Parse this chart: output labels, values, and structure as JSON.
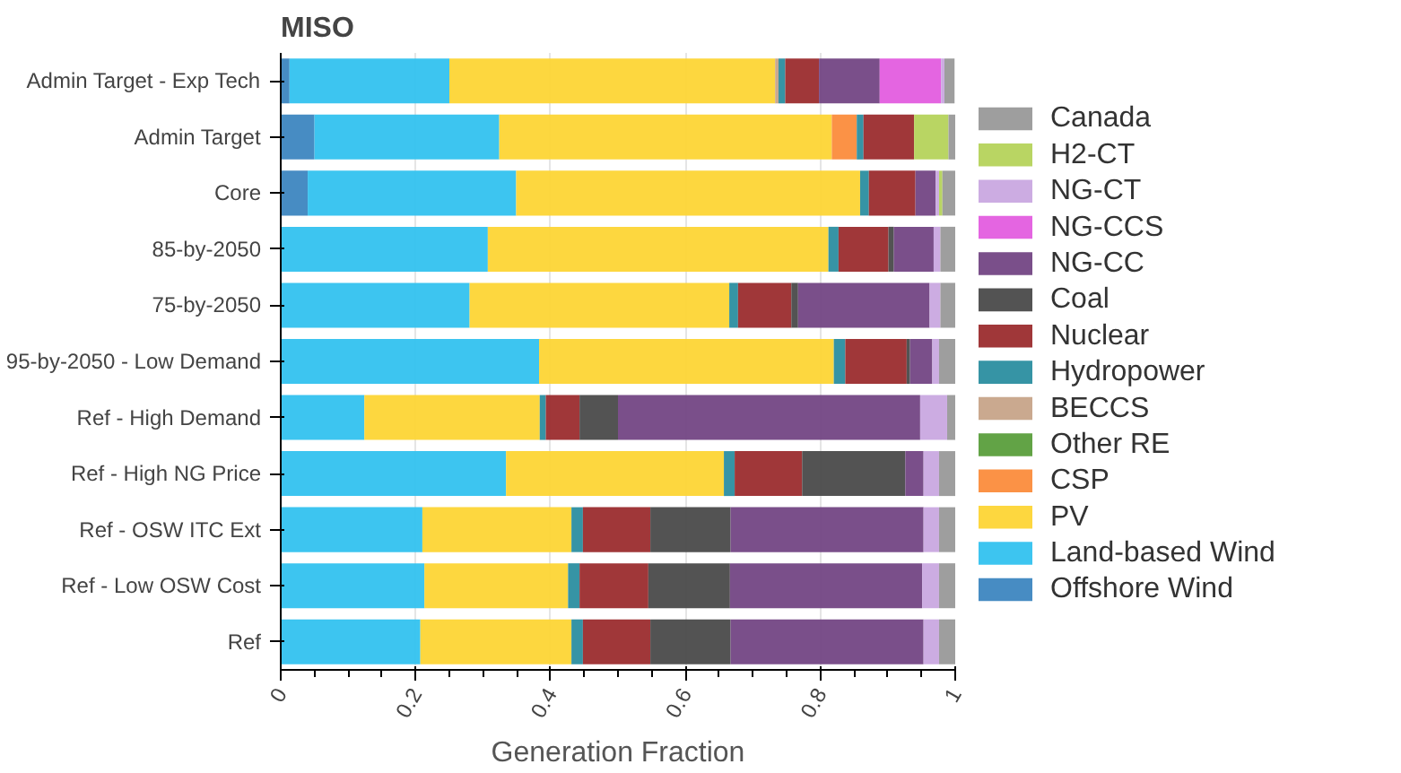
{
  "chart_data": {
    "type": "bar",
    "orientation": "horizontal",
    "stacked": true,
    "title": "MISO",
    "xlabel": "Generation Fraction",
    "categories": [
      "Admin Target - Exp Tech",
      "Admin Target",
      "Core",
      "85-by-2050",
      "75-by-2050",
      "95-by-2050 - Low Demand",
      "Ref - High Demand",
      "Ref - High NG Price",
      "Ref - OSW ITC Ext",
      "Ref - Low OSW Cost",
      "Ref"
    ],
    "xlim": [
      0,
      1
    ],
    "xticks": [
      0,
      0.2,
      0.4,
      0.6,
      0.8,
      1
    ],
    "grid": "x",
    "legend": "right",
    "series": [
      {
        "name": "Offshore Wind",
        "color": "#3d86c0",
        "values": [
          0.013,
          0.05,
          0.04,
          0,
          0,
          0,
          0,
          0,
          0,
          0,
          0
        ]
      },
      {
        "name": "Land-based Wind",
        "color": "#33c2ef",
        "values": [
          0.237,
          0.274,
          0.309,
          0.307,
          0.28,
          0.383,
          0.124,
          0.334,
          0.21,
          0.213,
          0.207
        ]
      },
      {
        "name": "PV",
        "color": "#fdd535",
        "values": [
          0.483,
          0.493,
          0.51,
          0.505,
          0.385,
          0.437,
          0.26,
          0.323,
          0.221,
          0.213,
          0.224
        ]
      },
      {
        "name": "CSP",
        "color": "#fb8c3c",
        "values": [
          0,
          0.037,
          0,
          0,
          0,
          0,
          0,
          0,
          0,
          0,
          0
        ]
      },
      {
        "name": "Other RE",
        "color": "#5a9e3c",
        "values": [
          0,
          0,
          0,
          0,
          0,
          0,
          0,
          0,
          0,
          0,
          0
        ]
      },
      {
        "name": "BECCS",
        "color": "#c7a489",
        "values": [
          0.005,
          0,
          0,
          0,
          0,
          0,
          0,
          0,
          0,
          0,
          0
        ]
      },
      {
        "name": "Hydropower",
        "color": "#2b8ea0",
        "values": [
          0.01,
          0.01,
          0.013,
          0.015,
          0.013,
          0.017,
          0.009,
          0.016,
          0.017,
          0.017,
          0.017
        ]
      },
      {
        "name": "Nuclear",
        "color": "#9b2c2e",
        "values": [
          0.05,
          0.075,
          0.069,
          0.074,
          0.079,
          0.091,
          0.05,
          0.1,
          0.1,
          0.102,
          0.1
        ]
      },
      {
        "name": "Coal",
        "color": "#4a4a4a",
        "values": [
          0,
          0,
          0,
          0.008,
          0.01,
          0.005,
          0.057,
          0.153,
          0.119,
          0.121,
          0.119
        ]
      },
      {
        "name": "NG-CC",
        "color": "#734684",
        "values": [
          0.09,
          0,
          0.03,
          0.059,
          0.195,
          0.033,
          0.448,
          0.027,
          0.286,
          0.285,
          0.286
        ]
      },
      {
        "name": "NG-CCS",
        "color": "#e35ddf",
        "values": [
          0.091,
          0,
          0,
          0,
          0,
          0,
          0,
          0,
          0,
          0,
          0
        ]
      },
      {
        "name": "NG-CT",
        "color": "#c9a8e0",
        "values": [
          0.005,
          0,
          0.005,
          0.01,
          0.016,
          0.01,
          0.04,
          0.023,
          0.023,
          0.025,
          0.023
        ]
      },
      {
        "name": "H2-CT",
        "color": "#b5d35b",
        "values": [
          0,
          0.051,
          0.005,
          0,
          0,
          0,
          0,
          0,
          0,
          0,
          0
        ]
      },
      {
        "name": "Canada",
        "color": "#999999",
        "values": [
          0.015,
          0.01,
          0.019,
          0.022,
          0.022,
          0.024,
          0.012,
          0.024,
          0.024,
          0.024,
          0.024
        ]
      }
    ]
  }
}
